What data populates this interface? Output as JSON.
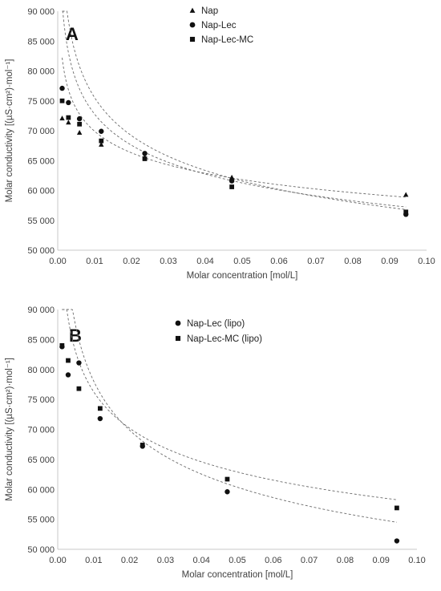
{
  "chart_data": [
    {
      "type": "scatter",
      "panel_label": "A",
      "xlabel": "Molar concentration [mol/L]",
      "ylabel": "Molar conductivity [(µS·cm²)·mol⁻¹]",
      "xlim": [
        0,
        0.1
      ],
      "ylim": [
        50000,
        90000
      ],
      "x_ticks": [
        "0.00",
        "0.01",
        "0.02",
        "0.03",
        "0.04",
        "0.05",
        "0.06",
        "0.07",
        "0.08",
        "0.09",
        "0.10"
      ],
      "y_ticks": [
        "50 000",
        "55 000",
        "60 000",
        "65 000",
        "70 000",
        "75 000",
        "80 000",
        "85 000",
        "90 000"
      ],
      "legend_position": "top-center",
      "trendline": "power, dashed",
      "series": [
        {
          "name": "Nap",
          "marker": "triangle",
          "points": [
            [
              0.0012,
              72100
            ],
            [
              0.0029,
              71400
            ],
            [
              0.0059,
              69700
            ],
            [
              0.0118,
              67700
            ],
            [
              0.0236,
              65600
            ],
            [
              0.0472,
              62200
            ],
            [
              0.0944,
              59300
            ]
          ],
          "fit": {
            "a": 49150,
            "b": -0.0765
          }
        },
        {
          "name": "Nap-Lec",
          "marker": "circle",
          "points": [
            [
              0.0012,
              77100
            ],
            [
              0.0029,
              74700
            ],
            [
              0.0059,
              72000
            ],
            [
              0.0118,
              69900
            ],
            [
              0.0236,
              66200
            ],
            [
              0.0472,
              61600
            ],
            [
              0.0944,
              56000
            ]
          ],
          "fit": {
            "a": 42090,
            "b": -0.127
          }
        },
        {
          "name": "Nap-Lec-MC",
          "marker": "square",
          "points": [
            [
              0.0012,
              75000
            ],
            [
              0.0029,
              72200
            ],
            [
              0.0059,
              71100
            ],
            [
              0.0118,
              68300
            ],
            [
              0.0236,
              65300
            ],
            [
              0.0472,
              60600
            ],
            [
              0.0944,
              56400
            ]
          ],
          "fit": {
            "a": 44460,
            "b": -0.107
          }
        }
      ]
    },
    {
      "type": "scatter",
      "panel_label": "B",
      "xlabel": "Molar concentration [mol/L]",
      "ylabel": "Molar conductivity [(µS·cm²)·mol⁻¹]",
      "xlim": [
        0,
        0.1
      ],
      "ylim": [
        50000,
        90000
      ],
      "x_ticks": [
        "0.00",
        "0.01",
        "0.02",
        "0.03",
        "0.04",
        "0.05",
        "0.06",
        "0.07",
        "0.08",
        "0.09",
        "0.10"
      ],
      "y_ticks": [
        "50 000",
        "55 000",
        "60 000",
        "65 000",
        "70 000",
        "75 000",
        "80 000",
        "85 000",
        "90 000"
      ],
      "legend_position": "top-center",
      "trendline": "power, dashed",
      "series": [
        {
          "name": "Nap-Lec (lipo)",
          "marker": "circle",
          "points": [
            [
              0.0012,
              83800
            ],
            [
              0.0029,
              79100
            ],
            [
              0.0059,
              81100
            ],
            [
              0.0118,
              71800
            ],
            [
              0.0236,
              67200
            ],
            [
              0.0472,
              59600
            ],
            [
              0.0944,
              51400
            ]
          ],
          "fit": {
            "a": 37370,
            "b": -0.16
          }
        },
        {
          "name": "Nap-Lec-MC (lipo)",
          "marker": "square",
          "points": [
            [
              0.0012,
              84000
            ],
            [
              0.0029,
              81500
            ],
            [
              0.0059,
              76800
            ],
            [
              0.0118,
              73500
            ],
            [
              0.0236,
              67400
            ],
            [
              0.0472,
              61700
            ],
            [
              0.0944,
              56900
            ]
          ],
          "fit": {
            "a": 43900,
            "b": -0.12
          }
        }
      ]
    }
  ]
}
